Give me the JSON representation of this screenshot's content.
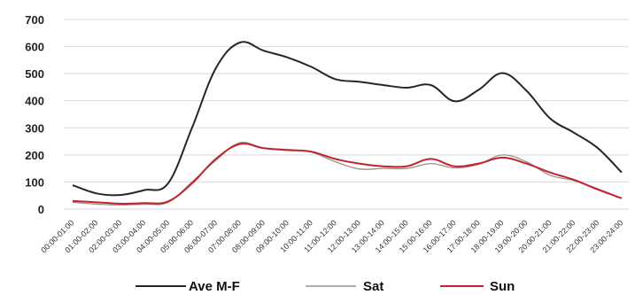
{
  "chart_data": {
    "type": "line",
    "categories": [
      "00:00-01:00",
      "01:00-02:00",
      "02:00-03:00",
      "03:00-04:00",
      "04:00-05:00",
      "05:00-06:00",
      "06:00-07:00",
      "07:00-08:00",
      "08:00-09:00",
      "09:00-10:00",
      "10:00-11:00",
      "11:00-12:00",
      "12:00-13:00",
      "13:00-14:00",
      "14:00-15:00",
      "15:00-16:00",
      "16:00-17:00",
      "17:00-18:00",
      "18:00-19:00",
      "19:00-20:00",
      "20:00-21:00",
      "21:00-22:00",
      "22:00-23:00",
      "23:00-24:00"
    ],
    "ylim": [
      0,
      700
    ],
    "yticks": [
      0,
      100,
      200,
      300,
      400,
      500,
      600,
      700
    ],
    "grid": true,
    "legend": "bottom",
    "series": [
      {
        "name": "Ave M-F",
        "color": "#262626",
        "values": [
          88,
          58,
          52,
          70,
          95,
          300,
          520,
          615,
          585,
          560,
          525,
          480,
          470,
          458,
          448,
          458,
          398,
          440,
          502,
          438,
          335,
          282,
          225,
          135
        ]
      },
      {
        "name": "Sat",
        "color": "#9a8f8a",
        "values": [
          25,
          18,
          15,
          18,
          25,
          100,
          180,
          245,
          225,
          220,
          210,
          175,
          148,
          150,
          150,
          168,
          152,
          165,
          200,
          175,
          125,
          105,
          75,
          40
        ]
      },
      {
        "name": "Sun",
        "color": "#c4222c",
        "values": [
          30,
          25,
          20,
          22,
          28,
          95,
          185,
          240,
          225,
          218,
          212,
          185,
          168,
          158,
          158,
          185,
          158,
          168,
          190,
          168,
          135,
          108,
          72,
          40
        ]
      }
    ]
  }
}
